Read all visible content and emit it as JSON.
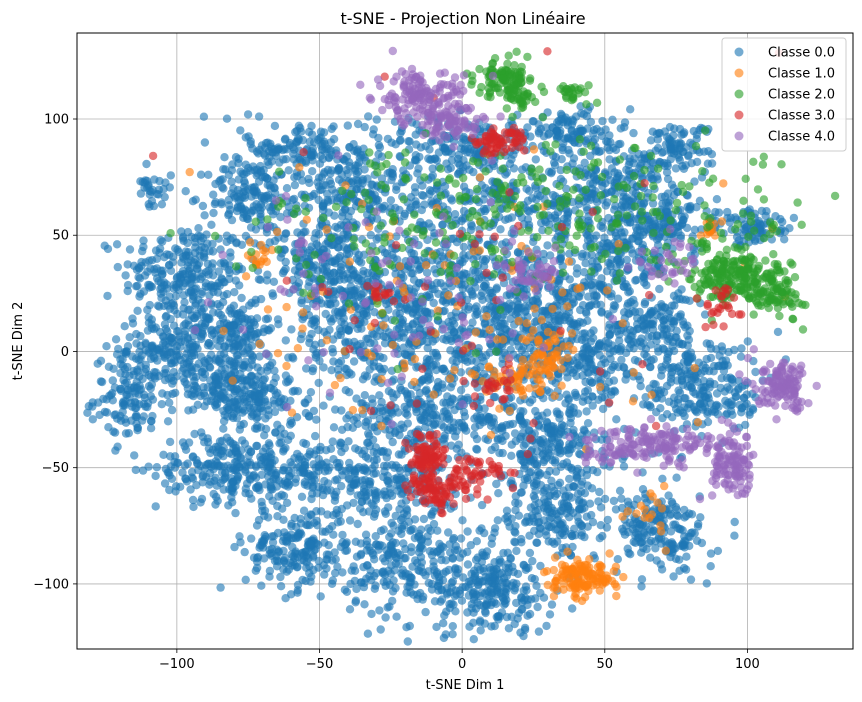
{
  "chart_data": {
    "type": "scatter",
    "title": "t-SNE - Projection Non Linéaire",
    "xlabel": "t-SNE Dim 1",
    "ylabel": "t-SNE Dim 2",
    "xlim": [
      -135,
      137
    ],
    "ylim": [
      -128,
      137
    ],
    "xticks": [
      -100,
      -50,
      0,
      50,
      100
    ],
    "yticks": [
      -100,
      -50,
      0,
      50,
      100
    ],
    "xtick_labels": [
      "−100",
      "−50",
      "0",
      "50",
      "100"
    ],
    "ytick_labels": [
      "−100",
      "−50",
      "0",
      "50",
      "100"
    ],
    "grid": true,
    "legend_position": "top-right",
    "series": [
      {
        "name": "Classe 0.0",
        "color": "#1f77b4",
        "clusters": [
          {
            "cx": -97,
            "cy": 33,
            "sx": 11,
            "sy": 11,
            "n": 260
          },
          {
            "cx": -102,
            "cy": 2,
            "sx": 9,
            "sy": 7,
            "n": 150
          },
          {
            "cx": -115,
            "cy": -20,
            "sx": 7,
            "sy": 9,
            "n": 130
          },
          {
            "cx": -85,
            "cy": -12,
            "sx": 8,
            "sy": 7,
            "n": 140
          },
          {
            "cx": -75,
            "cy": -22,
            "sx": 9,
            "sy": 7,
            "n": 140
          },
          {
            "cx": -80,
            "cy": 10,
            "sx": 7,
            "sy": 6,
            "n": 110
          },
          {
            "cx": -75,
            "cy": 67,
            "sx": 7,
            "sy": 8,
            "n": 130
          },
          {
            "cx": -85,
            "cy": -50,
            "sx": 11,
            "sy": 7,
            "n": 170
          },
          {
            "cx": -62,
            "cy": -50,
            "sx": 10,
            "sy": 8,
            "n": 150
          },
          {
            "cx": -58,
            "cy": -85,
            "sx": 9,
            "sy": 9,
            "n": 190
          },
          {
            "cx": -30,
            "cy": -55,
            "sx": 13,
            "sy": 9,
            "n": 230
          },
          {
            "cx": -20,
            "cy": -90,
            "sx": 11,
            "sy": 12,
            "n": 230
          },
          {
            "cx": 10,
            "cy": -103,
            "sx": 11,
            "sy": 9,
            "n": 230
          },
          {
            "cx": 33,
            "cy": -70,
            "sx": 12,
            "sy": 11,
            "n": 230
          },
          {
            "cx": 30,
            "cy": -40,
            "sx": 12,
            "sy": 9,
            "n": 200
          },
          {
            "cx": -10,
            "cy": -28,
            "sx": 20,
            "sy": 8,
            "n": 270
          },
          {
            "cx": 5,
            "cy": 0,
            "sx": 32,
            "sy": 12,
            "n": 440
          },
          {
            "cx": -10,
            "cy": 33,
            "sx": 30,
            "sy": 15,
            "n": 440
          },
          {
            "cx": -35,
            "cy": 15,
            "sx": 15,
            "sy": 14,
            "n": 230
          },
          {
            "cx": 25,
            "cy": 20,
            "sx": 14,
            "sy": 12,
            "n": 230
          },
          {
            "cx": 20,
            "cy": 65,
            "sx": 22,
            "sy": 9,
            "n": 270
          },
          {
            "cx": -40,
            "cy": 70,
            "sx": 14,
            "sy": 9,
            "n": 210
          },
          {
            "cx": -55,
            "cy": 88,
            "sx": 11,
            "sy": 6,
            "n": 130
          },
          {
            "cx": 0,
            "cy": 88,
            "sx": 13,
            "sy": 7,
            "n": 160
          },
          {
            "cx": 37,
            "cy": 95,
            "sx": 8,
            "sy": 5,
            "n": 110
          },
          {
            "cx": 55,
            "cy": 75,
            "sx": 11,
            "sy": 8,
            "n": 160
          },
          {
            "cx": 55,
            "cy": 40,
            "sx": 9,
            "sy": 12,
            "n": 180
          },
          {
            "cx": 75,
            "cy": 88,
            "sx": 6,
            "sy": 5,
            "n": 80
          },
          {
            "cx": 72,
            "cy": 55,
            "sx": 8,
            "sy": 6,
            "n": 110
          },
          {
            "cx": 102,
            "cy": 53,
            "sx": 7,
            "sy": 4,
            "n": 80
          },
          {
            "cx": 67,
            "cy": 10,
            "sx": 7,
            "sy": 7,
            "n": 110
          },
          {
            "cx": 85,
            "cy": -15,
            "sx": 11,
            "sy": 11,
            "n": 240
          },
          {
            "cx": 70,
            "cy": -78,
            "sx": 8,
            "sy": 9,
            "n": 170
          },
          {
            "cx": 45,
            "cy": -5,
            "sx": 8,
            "sy": 9,
            "n": 110
          },
          {
            "cx": -50,
            "cy": 40,
            "sx": 8,
            "sy": 10,
            "n": 130
          },
          {
            "cx": -107,
            "cy": 68,
            "sx": 3,
            "sy": 4,
            "n": 30
          }
        ]
      },
      {
        "name": "Classe 1.0",
        "color": "#ff7f0e",
        "clusters": [
          {
            "cx": 42,
            "cy": -98,
            "sx": 6,
            "sy": 4,
            "n": 130
          },
          {
            "cx": 30,
            "cy": -2,
            "sx": 3,
            "sy": 5,
            "n": 45
          },
          {
            "cx": 17,
            "cy": -12,
            "sx": 5,
            "sy": 4,
            "n": 40
          },
          {
            "cx": -70,
            "cy": 40,
            "sx": 3,
            "sy": 3,
            "n": 16
          },
          {
            "cx": 87,
            "cy": 52,
            "sx": 2,
            "sy": 2,
            "n": 14
          },
          {
            "cx": 65,
            "cy": -70,
            "sx": 4,
            "sy": 7,
            "n": 16
          },
          {
            "cx": 0,
            "cy": 20,
            "sx": 35,
            "sy": 30,
            "n": 130
          }
        ]
      },
      {
        "name": "Classe 2.0",
        "color": "#2ca02c",
        "clusters": [
          {
            "cx": 95,
            "cy": 33,
            "sx": 8,
            "sy": 6,
            "n": 200
          },
          {
            "cx": 110,
            "cy": 25,
            "sx": 5,
            "sy": 5,
            "n": 80
          },
          {
            "cx": 15,
            "cy": 118,
            "sx": 5,
            "sy": 4,
            "n": 90
          },
          {
            "cx": 20,
            "cy": 110,
            "sx": 4,
            "sy": 4,
            "n": 40
          },
          {
            "cx": 40,
            "cy": 112,
            "sx": 3,
            "sy": 2,
            "n": 25
          },
          {
            "cx": 50,
            "cy": 60,
            "sx": 40,
            "sy": 15,
            "n": 200
          },
          {
            "cx": -20,
            "cy": 50,
            "sx": 30,
            "sy": 20,
            "n": 110
          }
        ]
      },
      {
        "name": "Classe 3.0",
        "color": "#d62728",
        "clusters": [
          {
            "cx": -12,
            "cy": -45,
            "sx": 3,
            "sy": 5,
            "n": 80
          },
          {
            "cx": -10,
            "cy": -60,
            "sx": 5,
            "sy": 4,
            "n": 70
          },
          {
            "cx": 5,
            "cy": -52,
            "sx": 5,
            "sy": 4,
            "n": 50
          },
          {
            "cx": 12,
            "cy": 90,
            "sx": 5,
            "sy": 3,
            "n": 60
          },
          {
            "cx": 90,
            "cy": 20,
            "sx": 4,
            "sy": 5,
            "n": 25
          },
          {
            "cx": 12,
            "cy": -15,
            "sx": 4,
            "sy": 3,
            "n": 20
          },
          {
            "cx": -30,
            "cy": 24,
            "sx": 3,
            "sy": 2,
            "n": 14
          },
          {
            "cx": 0,
            "cy": 30,
            "sx": 40,
            "sy": 40,
            "n": 50
          }
        ]
      },
      {
        "name": "Classe 4.0",
        "color": "#9467bd",
        "clusters": [
          {
            "cx": -15,
            "cy": 110,
            "sx": 8,
            "sy": 5,
            "n": 130
          },
          {
            "cx": -5,
            "cy": 98,
            "sx": 6,
            "sy": 4,
            "n": 80
          },
          {
            "cx": 113,
            "cy": -15,
            "sx": 5,
            "sy": 5,
            "n": 120
          },
          {
            "cx": 95,
            "cy": -50,
            "sx": 4,
            "sy": 7,
            "n": 110
          },
          {
            "cx": 65,
            "cy": -40,
            "sx": 11,
            "sy": 4,
            "n": 150
          },
          {
            "cx": 25,
            "cy": 35,
            "sx": 6,
            "sy": 4,
            "n": 40
          },
          {
            "cx": 73,
            "cy": 40,
            "sx": 5,
            "sy": 4,
            "n": 30
          },
          {
            "cx": -25,
            "cy": 25,
            "sx": 30,
            "sy": 25,
            "n": 90
          }
        ]
      }
    ]
  }
}
